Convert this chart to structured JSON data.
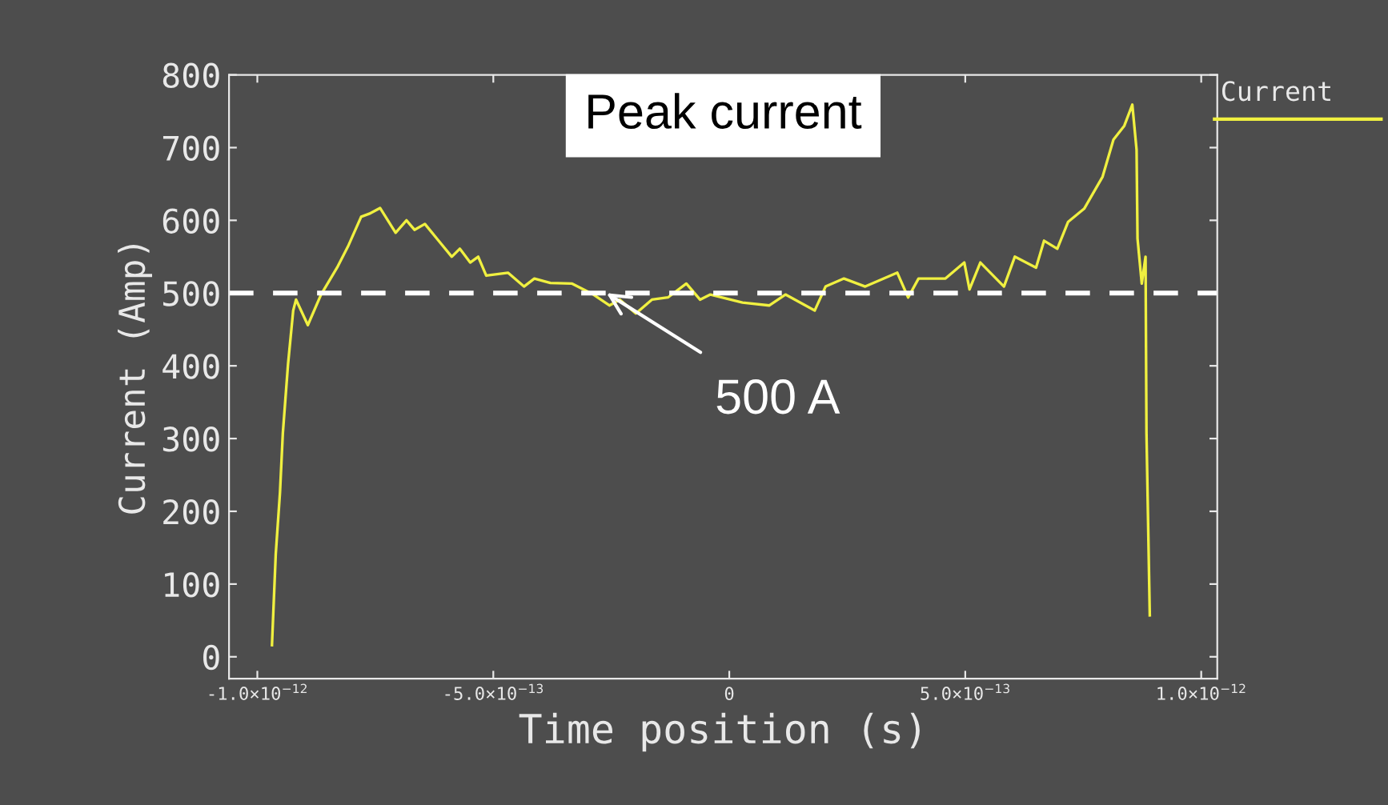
{
  "chart_data": {
    "type": "line",
    "title": "Peak current",
    "xlabel": "Time position (s)",
    "ylabel": "Current (Amp)",
    "xlim": [
      -1.06e-12,
      1.034e-12
    ],
    "ylim": [
      -30,
      800
    ],
    "xticks": [
      {
        "value": -1e-12,
        "label": "-1.0×10$^{−12}$"
      },
      {
        "value": -5e-13,
        "label": "-5.0×10$^{−13}$"
      },
      0,
      {
        "value": 5e-13,
        "label": "5.0×10$^{−13}$"
      },
      {
        "value": 1e-12,
        "label": "1.0×10$^{−12}$"
      }
    ],
    "yticks": [
      0,
      100,
      200,
      300,
      400,
      500,
      600,
      700,
      800
    ],
    "grid": false,
    "legend": "top right",
    "marker": "none",
    "line_style": "solid",
    "ref_lines": [
      {
        "axis": "y",
        "value": 500,
        "color": "#ffffff",
        "line_style": "dashed"
      }
    ],
    "annotations": [
      {
        "text": "500 A",
        "x": -2.6e-13,
        "y": 500
      }
    ],
    "series": [
      {
        "name": "Current",
        "color": "#f0f040",
        "x": [
          -9.69e-13,
          -9.61e-13,
          -9.52e-13,
          -9.46e-13,
          -9.35e-13,
          -9.24e-13,
          -9.18e-13,
          -8.93e-13,
          -8.65e-13,
          -8.31e-13,
          -8.08e-13,
          -7.8e-13,
          -7.63e-13,
          -7.4e-13,
          -7.07e-13,
          -6.84e-13,
          -6.67e-13,
          -6.45e-13,
          -6.16e-13,
          -5.88e-13,
          -5.71e-13,
          -5.49e-13,
          -5.32e-13,
          -5.15e-13,
          -4.69e-13,
          -4.35e-13,
          -4.13e-13,
          -3.79e-13,
          -3.33e-13,
          -2.88e-13,
          -2.54e-13,
          -2.32e-13,
          -1.98e-13,
          -1.64e-13,
          -1.3e-13,
          -9.1e-14,
          -6.2e-14,
          -4e-14,
          2.8e-14,
          8.5e-14,
          1.19e-13,
          1.81e-13,
          2.04e-13,
          2.43e-13,
          2.88e-13,
          3.56e-13,
          3.79e-13,
          4.01e-13,
          4.58e-13,
          4.98e-13,
          5.09e-13,
          5.32e-13,
          5.82e-13,
          6.05e-13,
          6.5e-13,
          6.67e-13,
          6.95e-13,
          7.18e-13,
          7.52e-13,
          7.91e-13,
          8.14e-13,
          8.37e-13,
          8.54e-13,
          8.63e-13,
          8.65e-13,
          8.74e-13,
          8.82e-13,
          8.84e-13,
          8.91e-13
        ],
        "values": [
          16,
          141,
          226,
          307,
          402,
          476,
          491,
          456,
          498,
          535,
          564,
          605,
          609,
          617,
          583,
          600,
          587,
          595,
          572,
          550,
          561,
          542,
          550,
          524,
          528,
          509,
          520,
          514,
          513,
          498,
          483,
          491,
          472,
          491,
          494,
          513,
          491,
          498,
          487,
          483,
          498,
          476,
          509,
          520,
          509,
          528,
          494,
          520,
          520,
          542,
          505,
          542,
          509,
          550,
          535,
          572,
          561,
          598,
          616,
          660,
          711,
          730,
          759,
          697,
          575,
          513,
          550,
          307,
          57
        ]
      }
    ]
  }
}
